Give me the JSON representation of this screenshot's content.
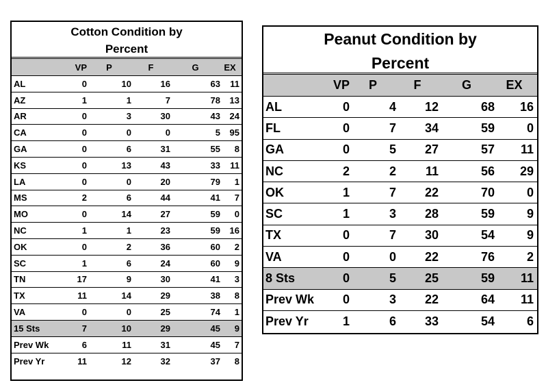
{
  "cotton": {
    "title_line1": "Cotton Condition by",
    "title_line2": "Percent",
    "headers": [
      "",
      "VP",
      "P",
      "F",
      "G",
      "EX"
    ],
    "rows": [
      {
        "state": "AL",
        "values": [
          "0",
          "10",
          "16",
          "63",
          "11"
        ]
      },
      {
        "state": "AZ",
        "values": [
          "1",
          "1",
          "7",
          "78",
          "13"
        ]
      },
      {
        "state": "AR",
        "values": [
          "0",
          "3",
          "30",
          "43",
          "24"
        ]
      },
      {
        "state": "CA",
        "values": [
          "0",
          "0",
          "0",
          "5",
          "95"
        ]
      },
      {
        "state": "GA",
        "values": [
          "0",
          "6",
          "31",
          "55",
          "8"
        ]
      },
      {
        "state": "KS",
        "values": [
          "0",
          "13",
          "43",
          "33",
          "11"
        ]
      },
      {
        "state": "LA",
        "values": [
          "0",
          "0",
          "20",
          "79",
          "1"
        ]
      },
      {
        "state": "MS",
        "values": [
          "2",
          "6",
          "44",
          "41",
          "7"
        ]
      },
      {
        "state": "MO",
        "values": [
          "0",
          "14",
          "27",
          "59",
          "0"
        ]
      },
      {
        "state": "NC",
        "values": [
          "1",
          "1",
          "23",
          "59",
          "16"
        ]
      },
      {
        "state": "OK",
        "values": [
          "0",
          "2",
          "36",
          "60",
          "2"
        ]
      },
      {
        "state": "SC",
        "values": [
          "1",
          "6",
          "24",
          "60",
          "9"
        ]
      },
      {
        "state": "TN",
        "values": [
          "17",
          "9",
          "30",
          "41",
          "3"
        ]
      },
      {
        "state": "TX",
        "values": [
          "11",
          "14",
          "29",
          "38",
          "8"
        ]
      },
      {
        "state": "VA",
        "values": [
          "0",
          "0",
          "25",
          "74",
          "1"
        ]
      },
      {
        "state": "15 Sts",
        "values": [
          "7",
          "10",
          "29",
          "45",
          "9"
        ],
        "shaded": true
      },
      {
        "state": "Prev Wk",
        "values": [
          "6",
          "11",
          "31",
          "45",
          "7"
        ]
      },
      {
        "state": "Prev Yr",
        "values": [
          "11",
          "12",
          "32",
          "37",
          "8"
        ]
      }
    ]
  },
  "peanut": {
    "title_line1": "Peanut Condition by",
    "title_line2": "Percent",
    "headers": [
      "",
      "VP",
      "P",
      "F",
      "G",
      "EX"
    ],
    "rows": [
      {
        "state": "AL",
        "values": [
          "0",
          "4",
          "12",
          "68",
          "16"
        ]
      },
      {
        "state": "FL",
        "values": [
          "0",
          "7",
          "34",
          "59",
          "0"
        ]
      },
      {
        "state": "GA",
        "values": [
          "0",
          "5",
          "27",
          "57",
          "11"
        ]
      },
      {
        "state": "NC",
        "values": [
          "2",
          "2",
          "11",
          "56",
          "29"
        ]
      },
      {
        "state": "OK",
        "values": [
          "1",
          "7",
          "22",
          "70",
          "0"
        ]
      },
      {
        "state": "SC",
        "values": [
          "1",
          "3",
          "28",
          "59",
          "9"
        ]
      },
      {
        "state": "TX",
        "values": [
          "0",
          "7",
          "30",
          "54",
          "9"
        ]
      },
      {
        "state": "VA",
        "values": [
          "0",
          "0",
          "22",
          "76",
          "2"
        ]
      },
      {
        "state": "8 Sts",
        "values": [
          "0",
          "5",
          "25",
          "59",
          "11"
        ],
        "shaded": true
      },
      {
        "state": "Prev Wk",
        "values": [
          "0",
          "3",
          "22",
          "64",
          "11"
        ]
      },
      {
        "state": "Prev Yr",
        "values": [
          "1",
          "6",
          "33",
          "54",
          "6"
        ]
      }
    ]
  }
}
